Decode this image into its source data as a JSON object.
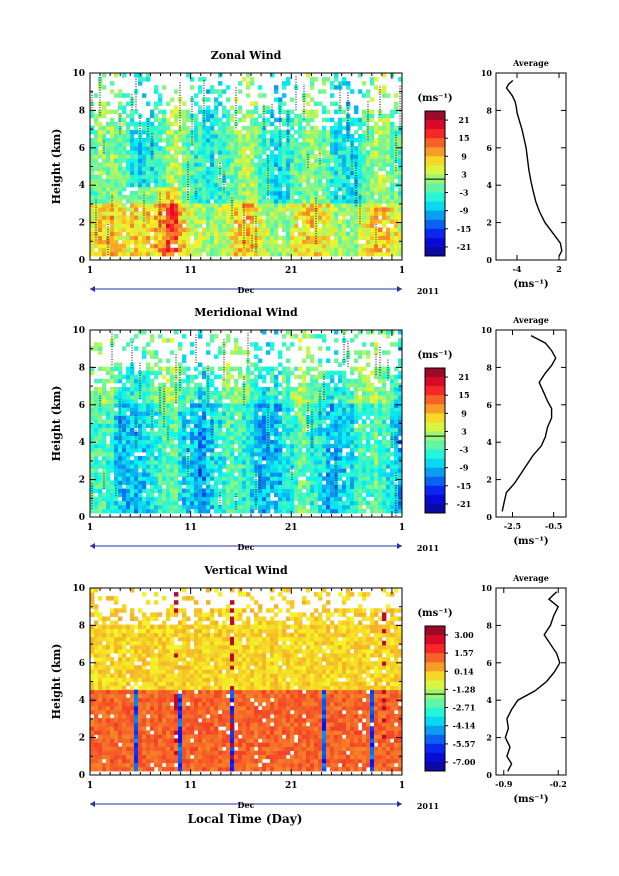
{
  "figure": {
    "xlabel": "Local Time (Day)"
  },
  "chart_data": [
    {
      "type": "heatmap",
      "title": "Zonal Wind",
      "ylabel": "Height (km)",
      "ylim": [
        0,
        10
      ],
      "yticks": [
        "0",
        "2",
        "4",
        "6",
        "8",
        "10"
      ],
      "xticks": [
        "1",
        "11",
        "21",
        "1"
      ],
      "month_label": "Dec",
      "year_label": "2011",
      "colorbar": {
        "unit": "(ms⁻¹)",
        "ticks": [
          "21",
          "15",
          "9",
          "3",
          "-3",
          "-9",
          "-15",
          "-21"
        ],
        "range": [
          -24,
          24
        ]
      },
      "profile": {
        "title": "Average",
        "xlabel": "(ms⁻¹)",
        "xticks": [
          "-4",
          "2"
        ],
        "xlim": [
          -7,
          3
        ],
        "xtick_values": [
          -4,
          2
        ],
        "heights": [
          0.2,
          0.5,
          0.9,
          1.4,
          2.0,
          2.6,
          3.1,
          3.7,
          4.2,
          4.8,
          5.4,
          6.0,
          6.5,
          7.0,
          7.5,
          7.9,
          8.2,
          8.5,
          8.8,
          9.0,
          9.2,
          9.4,
          9.6
        ],
        "values": [
          2.0,
          2.4,
          2.2,
          1.2,
          0.0,
          -0.8,
          -1.3,
          -1.7,
          -2.0,
          -2.3,
          -2.5,
          -2.7,
          -3.0,
          -3.3,
          -3.7,
          -4.0,
          -4.1,
          -4.3,
          -4.7,
          -5.1,
          -5.5,
          -5.2,
          -4.6
        ]
      },
      "field": {
        "min": -24,
        "max": 24,
        "clear_above_km": 8.0,
        "contours": true
      }
    },
    {
      "type": "heatmap",
      "title": "Meridional Wind",
      "ylabel": "Height (km)",
      "ylim": [
        0,
        10
      ],
      "yticks": [
        "0",
        "2",
        "4",
        "6",
        "8",
        "10"
      ],
      "xticks": [
        "1",
        "11",
        "21",
        "1"
      ],
      "month_label": "Dec",
      "year_label": "2011",
      "colorbar": {
        "unit": "(ms⁻¹)",
        "ticks": [
          "21",
          "15",
          "9",
          "3",
          "-3",
          "-9",
          "-15",
          "-21"
        ],
        "range": [
          -24,
          24
        ]
      },
      "profile": {
        "title": "Average",
        "xlabel": "(ms⁻¹)",
        "xticks": [
          "-2.5",
          "-0.5"
        ],
        "xlim": [
          -3.3,
          0.1
        ],
        "xtick_values": [
          -2.5,
          -0.5
        ],
        "heights": [
          0.3,
          0.8,
          1.3,
          1.8,
          2.3,
          2.8,
          3.3,
          3.8,
          4.3,
          4.8,
          5.3,
          5.8,
          6.2,
          6.7,
          7.2,
          7.7,
          8.1,
          8.5,
          8.9,
          9.3,
          9.7
        ],
        "values": [
          -3.0,
          -2.9,
          -2.8,
          -2.4,
          -2.1,
          -1.8,
          -1.5,
          -1.1,
          -0.9,
          -0.8,
          -0.6,
          -0.6,
          -0.8,
          -1.0,
          -1.2,
          -0.9,
          -0.6,
          -0.4,
          -0.6,
          -0.9,
          -1.6
        ]
      },
      "field": {
        "min": -24,
        "max": 24,
        "clear_above_km": 8.0,
        "contours": true
      }
    },
    {
      "type": "heatmap",
      "title": "Vertical Wind",
      "ylabel": "Height (km)",
      "ylim": [
        0,
        10
      ],
      "yticks": [
        "0",
        "2",
        "4",
        "6",
        "8",
        "10"
      ],
      "xticks": [
        "1",
        "11",
        "21",
        "1"
      ],
      "month_label": "Dec",
      "year_label": "2011",
      "colorbar": {
        "unit": "(ms⁻¹)",
        "ticks": [
          "3.00",
          "1.57",
          "0.14",
          "-1.28",
          "-2.71",
          "-4.14",
          "-5.57",
          "-7.00"
        ],
        "range": [
          -7.7,
          3.7
        ]
      },
      "profile": {
        "title": "Average",
        "xlabel": "(ms⁻¹)",
        "xticks": [
          "-0.9",
          "-0.2"
        ],
        "xlim": [
          -1.0,
          -0.1
        ],
        "xtick_values": [
          -0.9,
          -0.2
        ],
        "heights": [
          0.2,
          0.6,
          1.0,
          1.5,
          2.0,
          2.5,
          3.0,
          3.5,
          4.0,
          4.5,
          5.0,
          5.5,
          6.0,
          6.5,
          7.0,
          7.5,
          8.0,
          8.5,
          9.0,
          9.4,
          9.8
        ],
        "values": [
          -0.85,
          -0.8,
          -0.86,
          -0.82,
          -0.88,
          -0.84,
          -0.86,
          -0.8,
          -0.72,
          -0.5,
          -0.35,
          -0.25,
          -0.18,
          -0.22,
          -0.3,
          -0.38,
          -0.3,
          -0.26,
          -0.2,
          -0.32,
          -0.22
        ]
      },
      "field": {
        "min": -7.7,
        "max": 3.7,
        "clear_above_km": 9.0,
        "contours": false
      }
    }
  ]
}
